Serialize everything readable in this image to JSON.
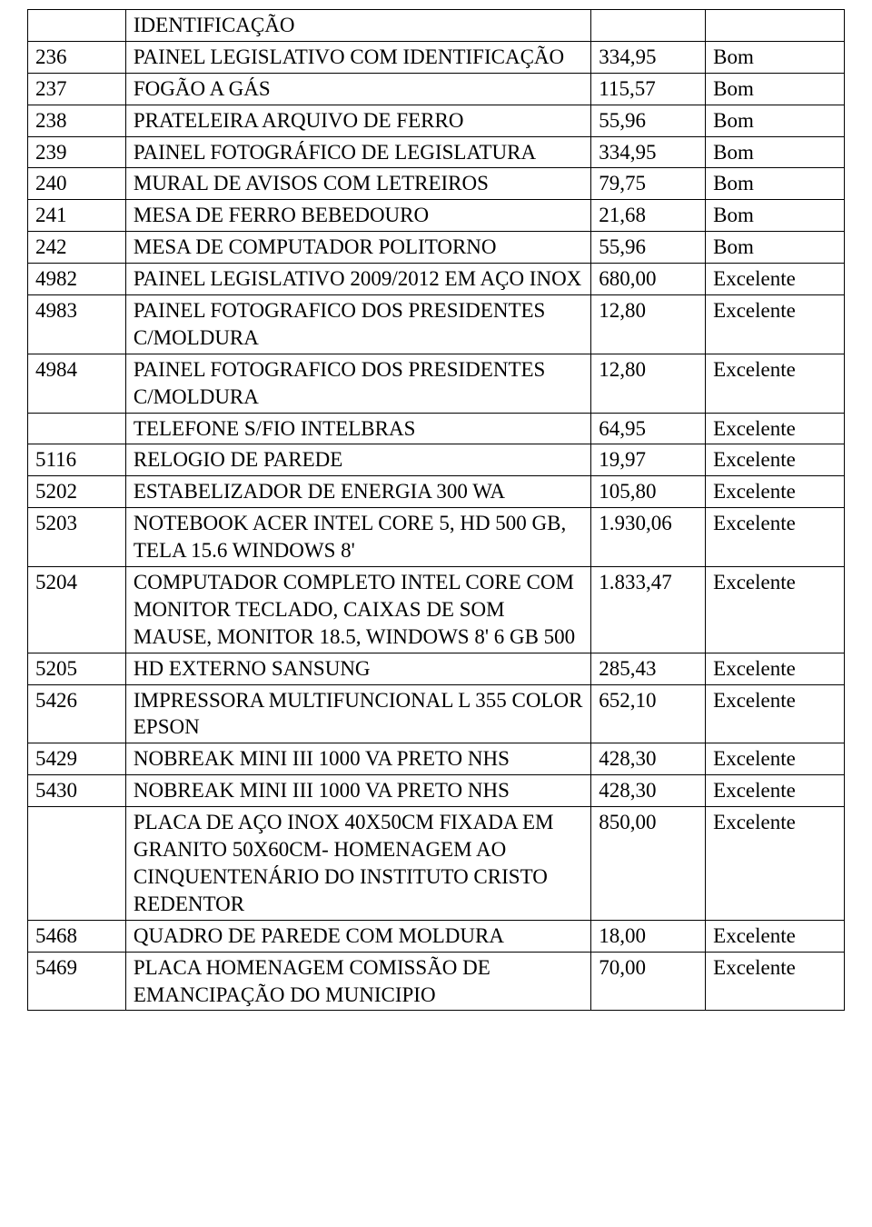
{
  "table": {
    "columns": [
      {
        "class": "col-id"
      },
      {
        "class": "col-desc"
      },
      {
        "class": "col-value"
      },
      {
        "class": "col-status"
      }
    ],
    "rows": [
      {
        "id": "",
        "desc": "IDENTIFICAÇÃO",
        "value": "",
        "status": ""
      },
      {
        "id": "236",
        "desc": "PAINEL LEGISLATIVO COM IDENTIFICAÇÃO",
        "value": "334,95",
        "status": "Bom"
      },
      {
        "id": "237",
        "desc": "FOGÃO A GÁS",
        "value": "115,57",
        "status": "Bom"
      },
      {
        "id": "238",
        "desc": "PRATELEIRA ARQUIVO DE FERRO",
        "value": "55,96",
        "status": "Bom"
      },
      {
        "id": "239",
        "desc": "PAINEL FOTOGRÁFICO DE LEGISLATURA",
        "value": "334,95",
        "status": "Bom"
      },
      {
        "id": "240",
        "desc": "MURAL DE AVISOS COM LETREIROS",
        "value": "79,75",
        "status": "Bom"
      },
      {
        "id": "241",
        "desc": "MESA DE FERRO BEBEDOURO",
        "value": "21,68",
        "status": "Bom"
      },
      {
        "id": "242",
        "desc": "MESA DE COMPUTADOR POLITORNO",
        "value": "55,96",
        "status": "Bom"
      },
      {
        "id": "4982",
        "desc": "PAINEL LEGISLATIVO 2009/2012 EM AÇO INOX",
        "value": "680,00",
        "status": "Excelente"
      },
      {
        "id": "4983",
        "desc": "PAINEL FOTOGRAFICO DOS PRESIDENTES C/MOLDURA",
        "value": "12,80",
        "status": "Excelente"
      },
      {
        "id": "4984",
        "desc": "PAINEL FOTOGRAFICO DOS PRESIDENTES C/MOLDURA",
        "value": "12,80",
        "status": "Excelente"
      },
      {
        "id": "",
        "desc": "TELEFONE S/FIO INTELBRAS",
        "value": "64,95",
        "status": "Excelente"
      },
      {
        "id": "5116",
        "desc": "RELOGIO DE PAREDE",
        "value": "19,97",
        "status": "Excelente"
      },
      {
        "id": "5202",
        "desc": "ESTABELIZADOR DE ENERGIA 300 WA",
        "value": "105,80",
        "status": "Excelente"
      },
      {
        "id": "5203",
        "desc": "NOTEBOOK ACER INTEL CORE 5, HD 500 GB, TELA 15.6 WINDOWS 8'",
        "value": "1.930,06",
        "status": "Excelente"
      },
      {
        "id": "5204",
        "desc": "COMPUTADOR COMPLETO INTEL CORE COM MONITOR TECLADO, CAIXAS DE SOM MAUSE, MONITOR 18.5, WINDOWS 8' 6 GB 500",
        "value": "1.833,47",
        "status": "Excelente"
      },
      {
        "id": "5205",
        "desc": "HD EXTERNO SANSUNG",
        "value": "285,43",
        "status": "Excelente"
      },
      {
        "id": "5426",
        "desc": "IMPRESSORA MULTIFUNCIONAL L 355 COLOR EPSON",
        "value": "652,10",
        "status": "Excelente"
      },
      {
        "id": "5429",
        "desc": "NOBREAK MINI III 1000 VA PRETO NHS",
        "value": "428,30",
        "status": "Excelente"
      },
      {
        "id": "5430",
        "desc": "NOBREAK MINI III 1000 VA PRETO NHS",
        "value": "428,30",
        "status": "Excelente"
      },
      {
        "id": "",
        "desc": "PLACA DE AÇO INOX 40X50CM FIXADA EM GRANITO 50X60CM- HOMENAGEM AO CINQUENTENÁRIO DO INSTITUTO CRISTO REDENTOR",
        "value": "850,00",
        "status": "Excelente"
      },
      {
        "id": "5468",
        "desc": "QUADRO DE PAREDE COM MOLDURA",
        "value": "18,00",
        "status": "Excelente"
      },
      {
        "id": "5469",
        "desc": "PLACA HOMENAGEM COMISSÃO DE EMANCIPAÇÃO DO MUNICIPIO",
        "value": "70,00",
        "status": "Excelente"
      }
    ]
  }
}
